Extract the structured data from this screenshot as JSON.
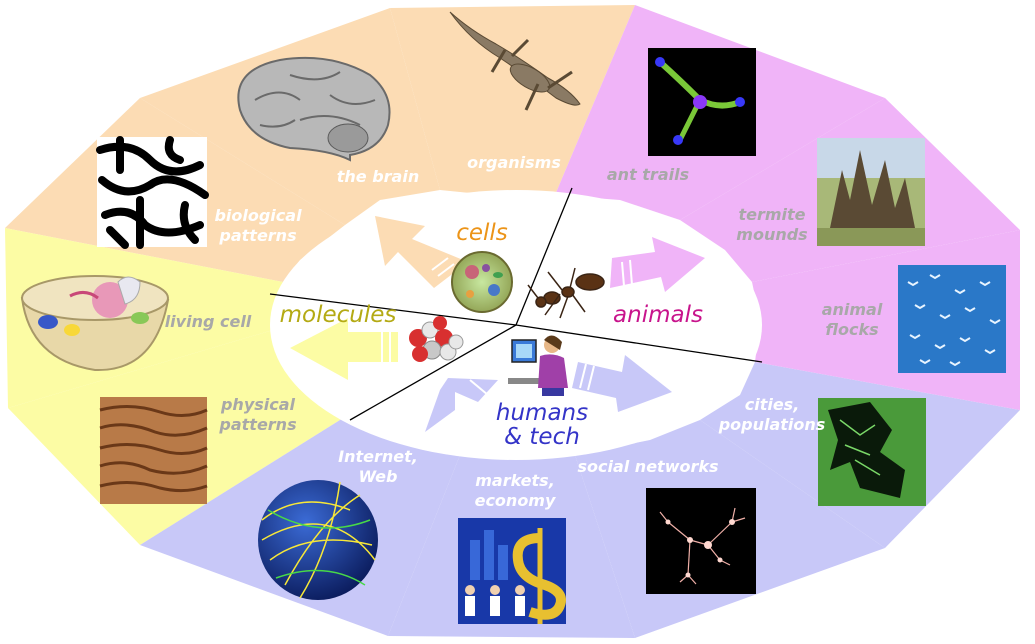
{
  "colors": {
    "biology": "#fcdcb4",
    "animals": "#f0b4f8",
    "humans": "#c8c8f8",
    "molecules": "#fcfca4",
    "cells_text": "#ec9418",
    "animals_text": "#c8148c",
    "molecules_text": "#b4aa14",
    "humans_text": "#3434c8"
  },
  "center": {
    "cells": "cells",
    "animals": "animals",
    "molecules": "molecules",
    "humans_line1": "humans",
    "humans_line2": "& tech"
  },
  "segments": {
    "organisms": "organisms",
    "the_brain": "the brain",
    "biological_patterns_line1": "biological",
    "biological_patterns_line2": "patterns",
    "living_cell": "living cell",
    "physical_patterns_line1": "physical",
    "physical_patterns_line2": "patterns",
    "internet_web_line1": "Internet,",
    "internet_web_line2": "Web",
    "markets_economy_line1": "markets,",
    "markets_economy_line2": "economy",
    "social_networks": "social networks",
    "cities_populations_line1": "cities,",
    "cities_populations_line2": "populations",
    "animal_flocks_line1": "animal",
    "animal_flocks_line2": "flocks",
    "termite_mounds_line1": "termite",
    "termite_mounds_line2": "mounds",
    "ant_trails": "ant trails"
  },
  "icons": {
    "lizard": "lizard-icon",
    "brain": "brain-icon",
    "turing_pattern": "turing-pattern-icon",
    "living_cell": "cell-diagram-icon",
    "sand_dunes": "sand-dunes-icon",
    "globe": "internet-globe-icon",
    "dollar_sign": "dollar-sign-icon",
    "social_graph": "social-network-icon",
    "city_map": "city-map-icon",
    "bird_flock": "bird-flock-icon",
    "termite_mound": "termite-mound-icon",
    "ant_trail": "ant-trail-icon",
    "ant": "ant-icon",
    "cell_center": "cell-icon",
    "molecule": "molecule-icon",
    "computer_user": "computer-user-icon"
  }
}
